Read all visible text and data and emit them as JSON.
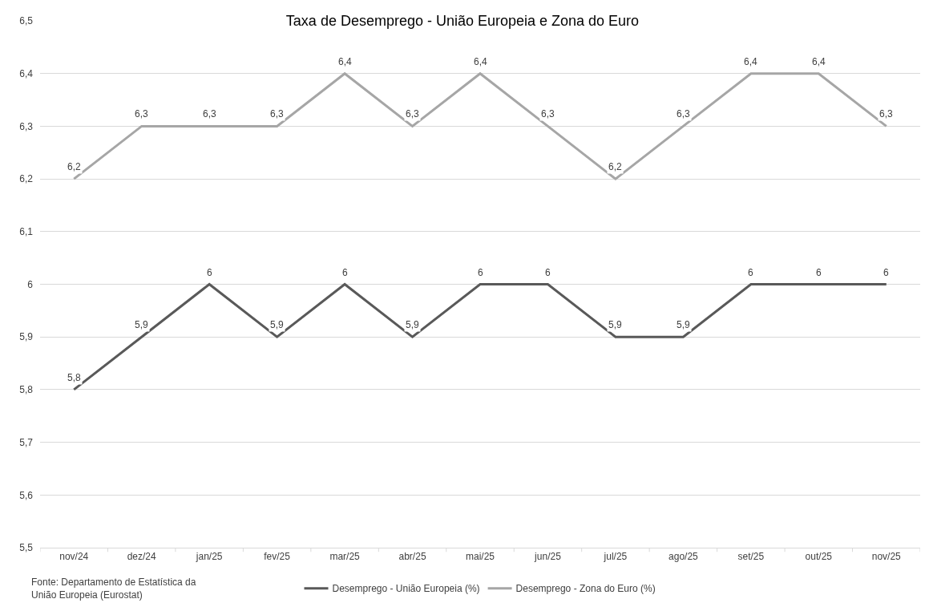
{
  "chart_data": {
    "type": "line",
    "title": "Taxa de Desemprego - União Europeia e Zona do Euro",
    "categories": [
      "nov/24",
      "dez/24",
      "jan/25",
      "fev/25",
      "mar/25",
      "abr/25",
      "mai/25",
      "jun/25",
      "jul/25",
      "ago/25",
      "set/25",
      "out/25",
      "nov/25"
    ],
    "series": [
      {
        "name": "Desemprego - União Europeia (%)",
        "color": "#595959",
        "values": [
          5.8,
          5.9,
          6,
          5.9,
          6,
          5.9,
          6,
          6,
          5.9,
          5.9,
          6,
          6,
          6
        ],
        "value_labels": [
          "5,8",
          "5,9",
          "6",
          "5,9",
          "6",
          "5,9",
          "6",
          "6",
          "5,9",
          "5,9",
          "6",
          "6",
          "6"
        ]
      },
      {
        "name": "Desemprego - Zona do Euro (%)",
        "color": "#a6a6a6",
        "values": [
          6.2,
          6.3,
          6.3,
          6.3,
          6.4,
          6.3,
          6.4,
          6.3,
          6.2,
          6.3,
          6.4,
          6.4,
          6.3
        ],
        "value_labels": [
          "6,2",
          "6,3",
          "6,3",
          "6,3",
          "6,4",
          "6,3",
          "6,4",
          "6,3",
          "6,2",
          "6,3",
          "6,4",
          "6,4",
          "6,3"
        ]
      }
    ],
    "ylim": [
      5.5,
      6.5
    ],
    "yticks": [
      {
        "value": 5.5,
        "label": "5,5"
      },
      {
        "value": 5.6,
        "label": "5,6"
      },
      {
        "value": 5.7,
        "label": "5,7"
      },
      {
        "value": 5.8,
        "label": "5,8"
      },
      {
        "value": 5.9,
        "label": "5,9"
      },
      6,
      {
        "value": 6.1,
        "label": "6,1"
      },
      {
        "value": 6.2,
        "label": "6,2"
      },
      {
        "value": 6.3,
        "label": "6,3"
      },
      {
        "value": 6.4,
        "label": "6,4"
      },
      {
        "value": 6.5,
        "label": "6,5"
      }
    ],
    "grid": "y",
    "legend": "bottom",
    "marker": "none",
    "line_style": "solid",
    "annotations": [
      "Fonte: Departamento de Estatística da União Europeia (Eurostat)"
    ]
  }
}
